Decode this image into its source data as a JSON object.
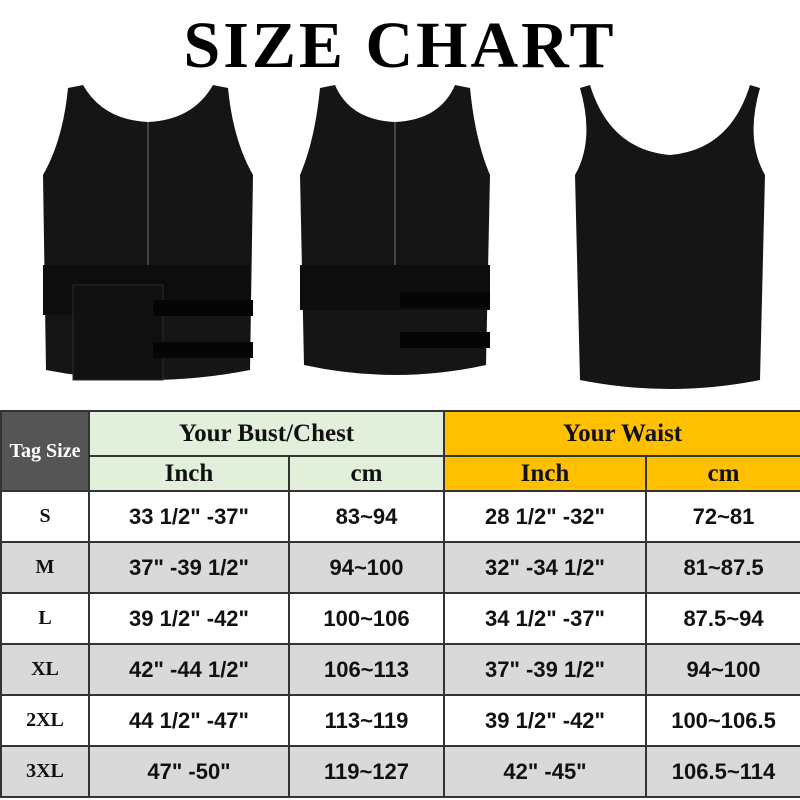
{
  "title": "SIZE CHART",
  "images": [
    "vest-front-male",
    "vest-front-female",
    "vest-back"
  ],
  "colors": {
    "tag_bg": "#555555",
    "bust_bg": "#e2efda",
    "waist_bg": "#ffc000",
    "alt_row": "#d9d9d9"
  },
  "table": {
    "tag_header": "Tag Size",
    "group1": "Your Bust/Chest",
    "group2": "Your Waist",
    "unit_inch": "Inch",
    "unit_cm": "cm",
    "rows": [
      {
        "size": "S",
        "bust_in": "33 1/2\" -37\"",
        "bust_cm": "83~94",
        "waist_in": "28 1/2\" -32\"",
        "waist_cm": "72~81"
      },
      {
        "size": "M",
        "bust_in": "37\" -39 1/2\"",
        "bust_cm": "94~100",
        "waist_in": "32\" -34 1/2\"",
        "waist_cm": "81~87.5"
      },
      {
        "size": "L",
        "bust_in": "39 1/2\" -42\"",
        "bust_cm": "100~106",
        "waist_in": "34 1/2\" -37\"",
        "waist_cm": "87.5~94"
      },
      {
        "size": "XL",
        "bust_in": "42\" -44 1/2\"",
        "bust_cm": "106~113",
        "waist_in": "37\" -39 1/2\"",
        "waist_cm": "94~100"
      },
      {
        "size": "2XL",
        "bust_in": "44 1/2\" -47\"",
        "bust_cm": "113~119",
        "waist_in": "39 1/2\" -42\"",
        "waist_cm": "100~106.5"
      },
      {
        "size": "3XL",
        "bust_in": "47\" -50\"",
        "bust_cm": "119~127",
        "waist_in": "42\" -45\"",
        "waist_cm": "106.5~114"
      }
    ]
  }
}
